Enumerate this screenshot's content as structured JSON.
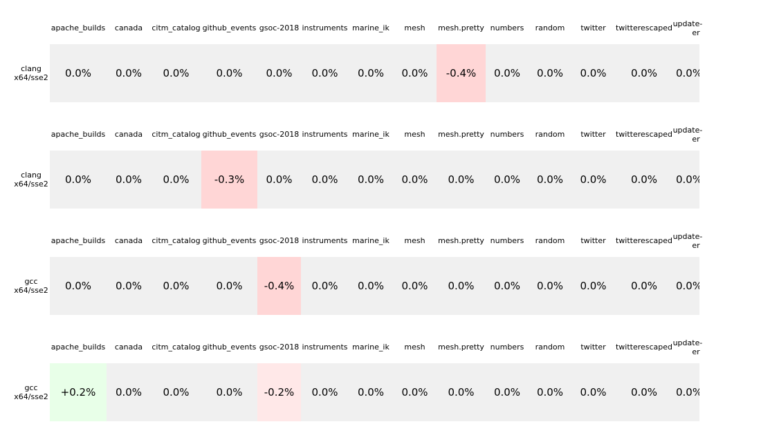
{
  "chart_data": {
    "type": "heatmap",
    "columns": [
      "apache_builds",
      "canada",
      "citm_catalog",
      "github_events",
      "gsoc-2018",
      "instruments",
      "marine_ik",
      "mesh",
      "mesh.pretty",
      "numbers",
      "random",
      "twitter",
      "twitterescaped",
      "update-center"
    ],
    "colors": {
      "neutral": "#f0f0f0",
      "negative_strong": "#ffd6d6",
      "negative_light": "#ffe8e8",
      "positive": "#e8ffe8"
    },
    "rows": [
      {
        "label": "clang\nx64/sse2",
        "values": [
          "0.0%",
          "0.0%",
          "0.0%",
          "0.0%",
          "0.0%",
          "0.0%",
          "0.0%",
          "0.0%",
          "-0.4%",
          "0.0%",
          "0.0%",
          "0.0%",
          "0.0%",
          "0.0%"
        ],
        "numeric": [
          0.0,
          0.0,
          0.0,
          0.0,
          0.0,
          0.0,
          0.0,
          0.0,
          -0.4,
          0.0,
          0.0,
          0.0,
          0.0,
          0.0
        ]
      },
      {
        "label": "clang\nx64/sse2",
        "values": [
          "0.0%",
          "0.0%",
          "0.0%",
          "-0.3%",
          "0.0%",
          "0.0%",
          "0.0%",
          "0.0%",
          "0.0%",
          "0.0%",
          "0.0%",
          "0.0%",
          "0.0%",
          "0.0%"
        ],
        "numeric": [
          0.0,
          0.0,
          0.0,
          -0.3,
          0.0,
          0.0,
          0.0,
          0.0,
          0.0,
          0.0,
          0.0,
          0.0,
          0.0,
          0.0
        ]
      },
      {
        "label": "gcc\nx64/sse2",
        "values": [
          "0.0%",
          "0.0%",
          "0.0%",
          "0.0%",
          "-0.4%",
          "0.0%",
          "0.0%",
          "0.0%",
          "0.0%",
          "0.0%",
          "0.0%",
          "0.0%",
          "0.0%",
          "0.0%"
        ],
        "numeric": [
          0.0,
          0.0,
          0.0,
          0.0,
          -0.4,
          0.0,
          0.0,
          0.0,
          0.0,
          0.0,
          0.0,
          0.0,
          0.0,
          0.0
        ]
      },
      {
        "label": "gcc\nx64/sse2",
        "values": [
          "+0.2%",
          "0.0%",
          "0.0%",
          "0.0%",
          "-0.2%",
          "0.0%",
          "0.0%",
          "0.0%",
          "0.0%",
          "0.0%",
          "0.0%",
          "0.0%",
          "0.0%",
          "0.0%"
        ],
        "numeric": [
          0.2,
          0.0,
          0.0,
          0.0,
          -0.2,
          0.0,
          0.0,
          0.0,
          0.0,
          0.0,
          0.0,
          0.0,
          0.0,
          0.0
        ]
      }
    ]
  }
}
